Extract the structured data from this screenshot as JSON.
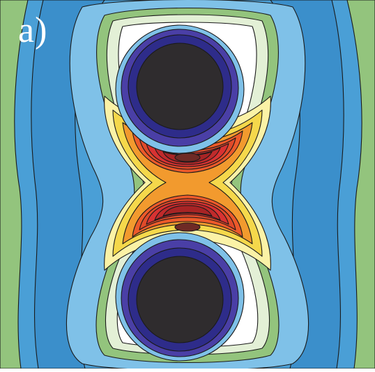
{
  "panel_label": "a)",
  "colors": {
    "outer_green": "#cfe3c4",
    "green": "#93c47d",
    "blue": "#4a9fd6",
    "light_blue": "#7fc1e8",
    "pale_green": "#e3f0d6",
    "white": "#ffffff",
    "pale_yellow": "#fbf2a6",
    "yellow": "#f5d84b",
    "orange": "#f29a2e",
    "red_orange": "#ec5a2a",
    "red": "#d83232",
    "dark_red": "#a82425",
    "core_red": "#6e2a25",
    "indigo": "#2e2c8a",
    "violet": "#4a3fa6",
    "sphere": "#2f2c2e",
    "contour_line": "#1a1a1a"
  }
}
